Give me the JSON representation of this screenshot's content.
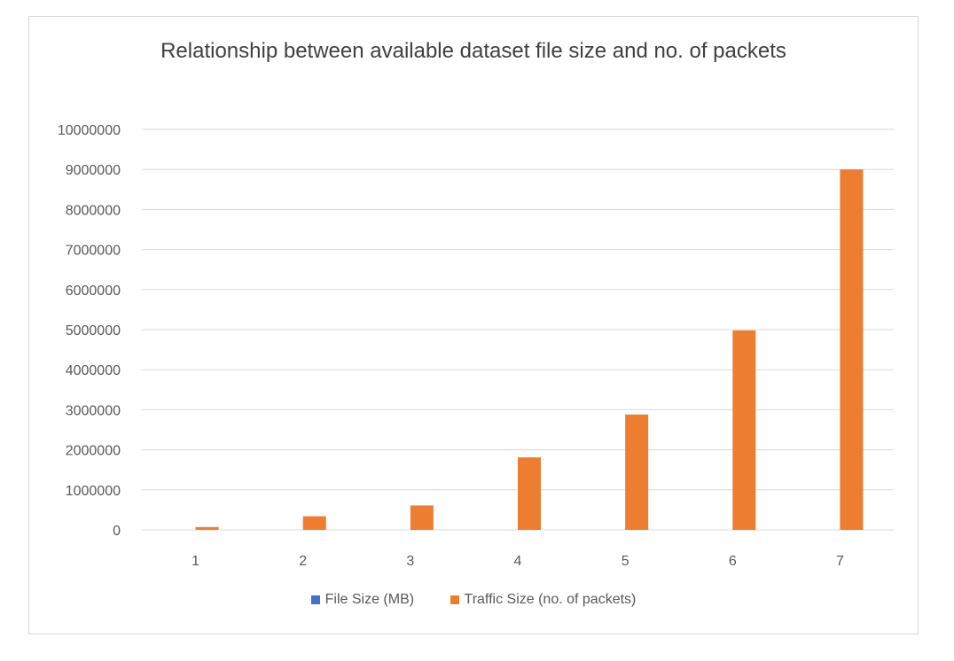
{
  "chart_data": {
    "type": "bar",
    "title": "Relationship between available dataset file size and no. of packets",
    "xlabel": "",
    "ylabel": "",
    "categories": [
      "1",
      "2",
      "3",
      "4",
      "5",
      "6",
      "7"
    ],
    "ylim": [
      0,
      10000000
    ],
    "yticks": [
      "0",
      "1000000",
      "2000000",
      "3000000",
      "4000000",
      "5000000",
      "6000000",
      "7000000",
      "8000000",
      "9000000",
      "10000000"
    ],
    "grid": true,
    "legend_position": "bottom",
    "series": [
      {
        "name": "File Size (MB)",
        "color": "#4472c4",
        "values": [
          0,
          0,
          0,
          0,
          0,
          0,
          0
        ]
      },
      {
        "name": "Traffic Size (no. of packets)",
        "color": "#ed7d31",
        "values": [
          70000,
          340000,
          610000,
          1810000,
          2880000,
          4980000,
          9000000
        ]
      }
    ]
  }
}
